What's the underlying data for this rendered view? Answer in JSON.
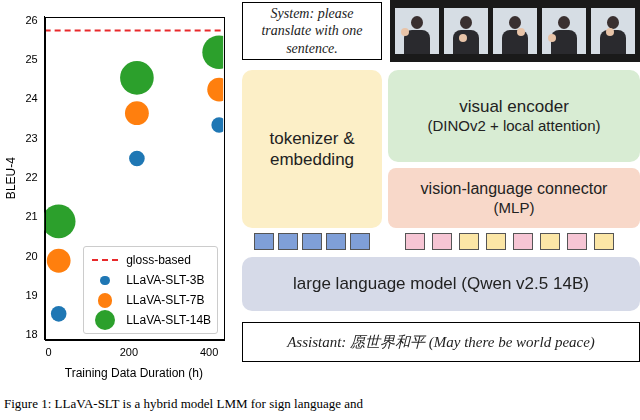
{
  "chart_data": {
    "type": "bubble",
    "x_label": "Training Data Duration (h)",
    "y_label": "BLEU-4",
    "xlim": [
      -10,
      435
    ],
    "xticks": [
      0,
      200,
      400
    ],
    "ylim": [
      17.9,
      26.1
    ],
    "yticks": [
      18,
      19,
      20,
      21,
      22,
      23,
      24,
      25,
      26
    ],
    "grid": false,
    "legend": "lower right",
    "series": [
      {
        "name": "gloss-based",
        "type": "line",
        "line_style": "dashed",
        "color": "#e8292b",
        "x": [
          -10,
          435
        ],
        "values": [
          25.75,
          25.75
        ]
      },
      {
        "name": "LLaVA-SLT-3B",
        "color": "#1f77b4",
        "x": [
          25,
          220,
          425
        ],
        "values": [
          18.55,
          22.5,
          23.35
        ],
        "sizes": [
          3,
          3,
          3
        ]
      },
      {
        "name": "LLaVA-SLT-7B",
        "color": "#ff7f0e",
        "x": [
          25,
          220,
          425
        ],
        "values": [
          19.9,
          23.65,
          24.25
        ],
        "sizes": [
          7,
          7,
          7
        ]
      },
      {
        "name": "LLaVA-SLT-14B",
        "color": "#2ca02c",
        "x": [
          25,
          220,
          425
        ],
        "values": [
          20.9,
          24.55,
          25.2
        ],
        "sizes": [
          14,
          14,
          14
        ]
      }
    ]
  },
  "diagram": {
    "system_prompt": "System: please translate with one sentence.",
    "tokenizer": "tokenizer & embedding",
    "visual_encoder": {
      "title": "visual encoder",
      "detail": "(DINOv2 + local attention)"
    },
    "connector": {
      "title": "vision-language connector",
      "detail": "(MLP)"
    },
    "llm": "large language model (Qwen v2.5 14B)",
    "assistant": "Assistant: 愿世界和平 (May there be world peace)"
  },
  "caption": "Figure 1: LLaVA-SLT is a hybrid model LMM for sign language and"
}
